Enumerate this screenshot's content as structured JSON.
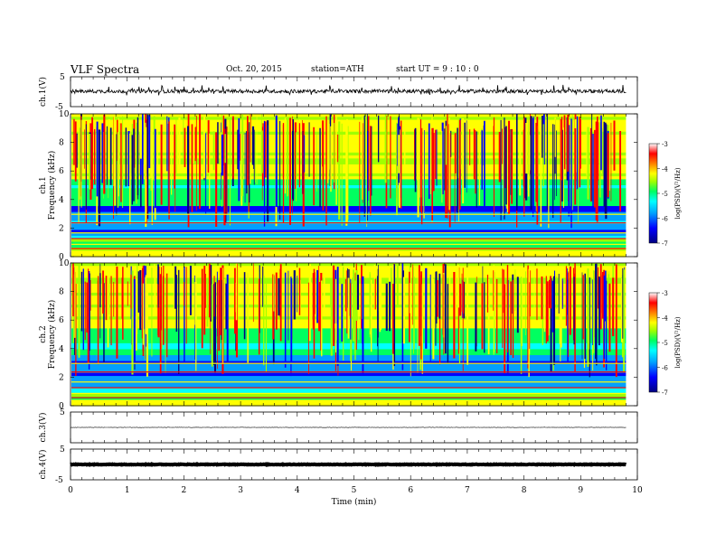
{
  "header": {
    "title": "VLF  Spectra",
    "date": "Oct. 20, 2015",
    "station": "station=ATH",
    "start": "start  UT  =   9  : 10 : 0"
  },
  "chart_data": [
    {
      "type": "line",
      "panel": "ch1-waveform",
      "ylabel": "ch.1(V)",
      "ylim": [
        -5,
        5
      ],
      "yticks": [
        "5",
        "-5"
      ],
      "xlim": [
        0,
        10
      ],
      "series": [
        {
          "values_note": "",
          "x_range": [
            0,
            9.8
          ],
          "amplitude_v": [
            -1.2,
            1.5
          ]
        }
      ]
    },
    {
      "type": "heatmap",
      "panel": "ch1-spectrogram",
      "ylabel": "ch.1\nFrequency  (kHz)",
      "ylabel_lines": [
        "ch.1",
        "Frequency  (kHz)"
      ],
      "ylim": [
        0,
        10
      ],
      "yticks": [
        "0",
        "2",
        "4",
        "6",
        "8",
        "10"
      ],
      "xlim": [
        0,
        10
      ],
      "x_data_end": 9.8,
      "colorbar": {
        "label": "log(PSD)(V²/Hz)",
        "range": [
          -7,
          -3
        ],
        "ticks": [
          "-3",
          "-4",
          "-5",
          "-6",
          "-7"
        ]
      }
    },
    {
      "type": "heatmap",
      "panel": "ch2-spectrogram",
      "ylabel_lines": [
        "ch.2",
        "Frequency  (kHz)"
      ],
      "ylim": [
        0,
        10
      ],
      "yticks": [
        "0",
        "2",
        "4",
        "6",
        "8",
        "10"
      ],
      "xlim": [
        0,
        10
      ],
      "x_data_end": 9.8,
      "colorbar": {
        "label": "log(PSD)(V²/Hz)",
        "range": [
          -7,
          -3
        ],
        "ticks": [
          "-3",
          "-4",
          "-5",
          "-6",
          "-7"
        ]
      }
    },
    {
      "type": "line",
      "panel": "ch3-waveform",
      "ylabel": "ch.3(V)",
      "ylim": [
        -5,
        5
      ],
      "yticks": [
        "5"
      ],
      "xlim": [
        0,
        10
      ],
      "series": [
        {
          "x_range": [
            0,
            9.8
          ],
          "level_v": 0
        }
      ]
    },
    {
      "type": "line",
      "panel": "ch4-waveform",
      "ylabel": "ch.4(V)",
      "ylim": [
        -5,
        5
      ],
      "yticks": [
        "5",
        "-5"
      ],
      "xlim": [
        0,
        10
      ],
      "series": [
        {
          "x_range": [
            0,
            9.8
          ],
          "level_v": 0
        }
      ]
    }
  ],
  "xaxis": {
    "label": "Time  (min)",
    "ticks": [
      "0",
      "1",
      "2",
      "3",
      "4",
      "5",
      "6",
      "7",
      "8",
      "9",
      "10"
    ]
  },
  "colors": {
    "trace": "#000000",
    "colormap": [
      "#000080",
      "#0000ff",
      "#00a0ff",
      "#00ffff",
      "#00ff60",
      "#a0ff00",
      "#ffff00",
      "#ff8000",
      "#ff0000",
      "#ffffff"
    ]
  }
}
